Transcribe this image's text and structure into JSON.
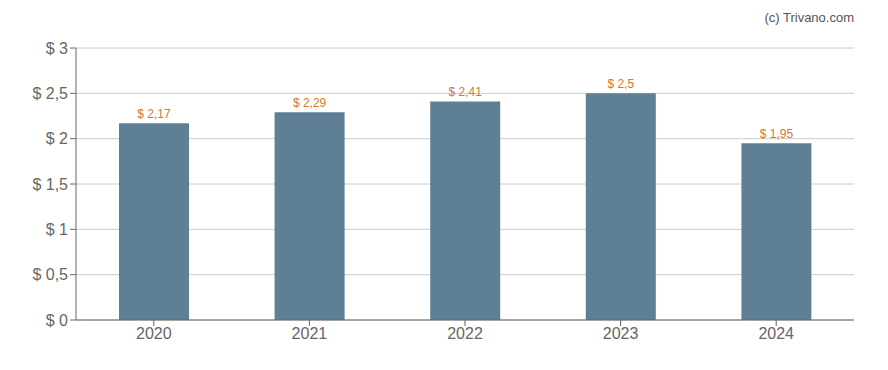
{
  "chart_data": {
    "type": "bar",
    "annotation": "(c) Trivano.com",
    "categories": [
      "2020",
      "2021",
      "2022",
      "2023",
      "2024"
    ],
    "values": [
      2.17,
      2.29,
      2.41,
      2.5,
      1.95
    ],
    "value_labels": [
      "$ 2,17",
      "$ 2,29",
      "$ 2,41",
      "$ 2,5",
      "$ 1,95"
    ],
    "data_labels": true,
    "color": "#5f7f95",
    "ylim": [
      0,
      3.0
    ],
    "yticks": [
      {
        "value": 0,
        "label": "$ 0"
      },
      {
        "value": 0.5,
        "label": "$ 0,5"
      },
      {
        "value": 1.0,
        "label": "$ 1"
      },
      {
        "value": 1.5,
        "label": "$ 1,5"
      },
      {
        "value": 2.0,
        "label": "$ 2"
      },
      {
        "value": 2.5,
        "label": "$ 2,5"
      },
      {
        "value": 3.0,
        "label": "$ 3"
      }
    ],
    "grid": true
  }
}
